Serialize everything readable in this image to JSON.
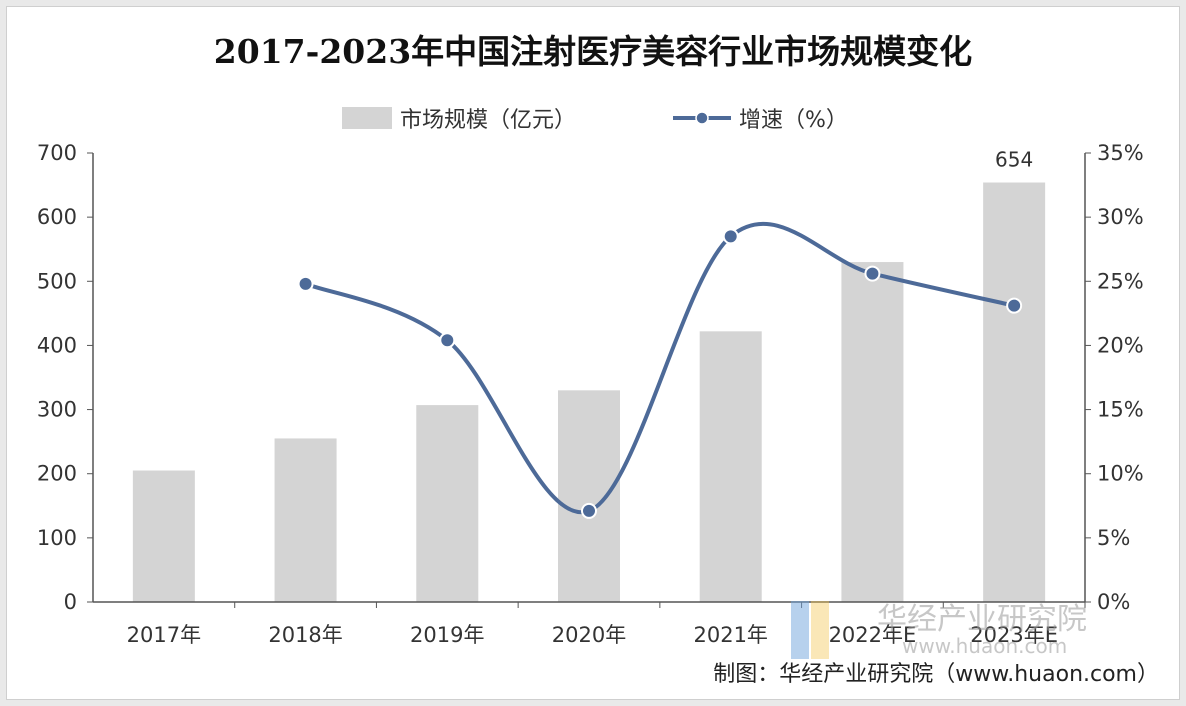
{
  "chart_data": {
    "type": "bar",
    "title": "2017-2023年中国注射医疗美容行业市场规模变化",
    "categories": [
      "2017年",
      "2018年",
      "2019年",
      "2020年",
      "2021年",
      "2022年E",
      "2023年E"
    ],
    "series": [
      {
        "name": "市场规模（亿元）",
        "type": "bar",
        "axis": "left",
        "values": [
          205,
          255,
          307,
          330,
          422,
          530,
          654
        ],
        "color": "#d4d4d4"
      },
      {
        "name": "增速（%）",
        "type": "line",
        "axis": "right",
        "values": [
          null,
          24.8,
          20.4,
          7.1,
          28.5,
          25.6,
          23.1
        ],
        "color": "#4d6a98"
      }
    ],
    "data_labels": [
      {
        "category": "2023年E",
        "text": "654"
      }
    ],
    "y_left": {
      "range": [
        0,
        700
      ],
      "ticks": [
        "0",
        "100",
        "200",
        "300",
        "400",
        "500",
        "600",
        "700"
      ]
    },
    "y_right": {
      "range": [
        0,
        35
      ],
      "ticks": [
        "0%",
        "5%",
        "10%",
        "15%",
        "20%",
        "25%",
        "30%",
        "35%"
      ]
    },
    "grid": false,
    "legend": "top-center"
  },
  "source_note": "制图：华经产业研究院（www.huaon.com）",
  "watermark": {
    "text": "华经产业研究院",
    "url": "www.huaon.com"
  }
}
